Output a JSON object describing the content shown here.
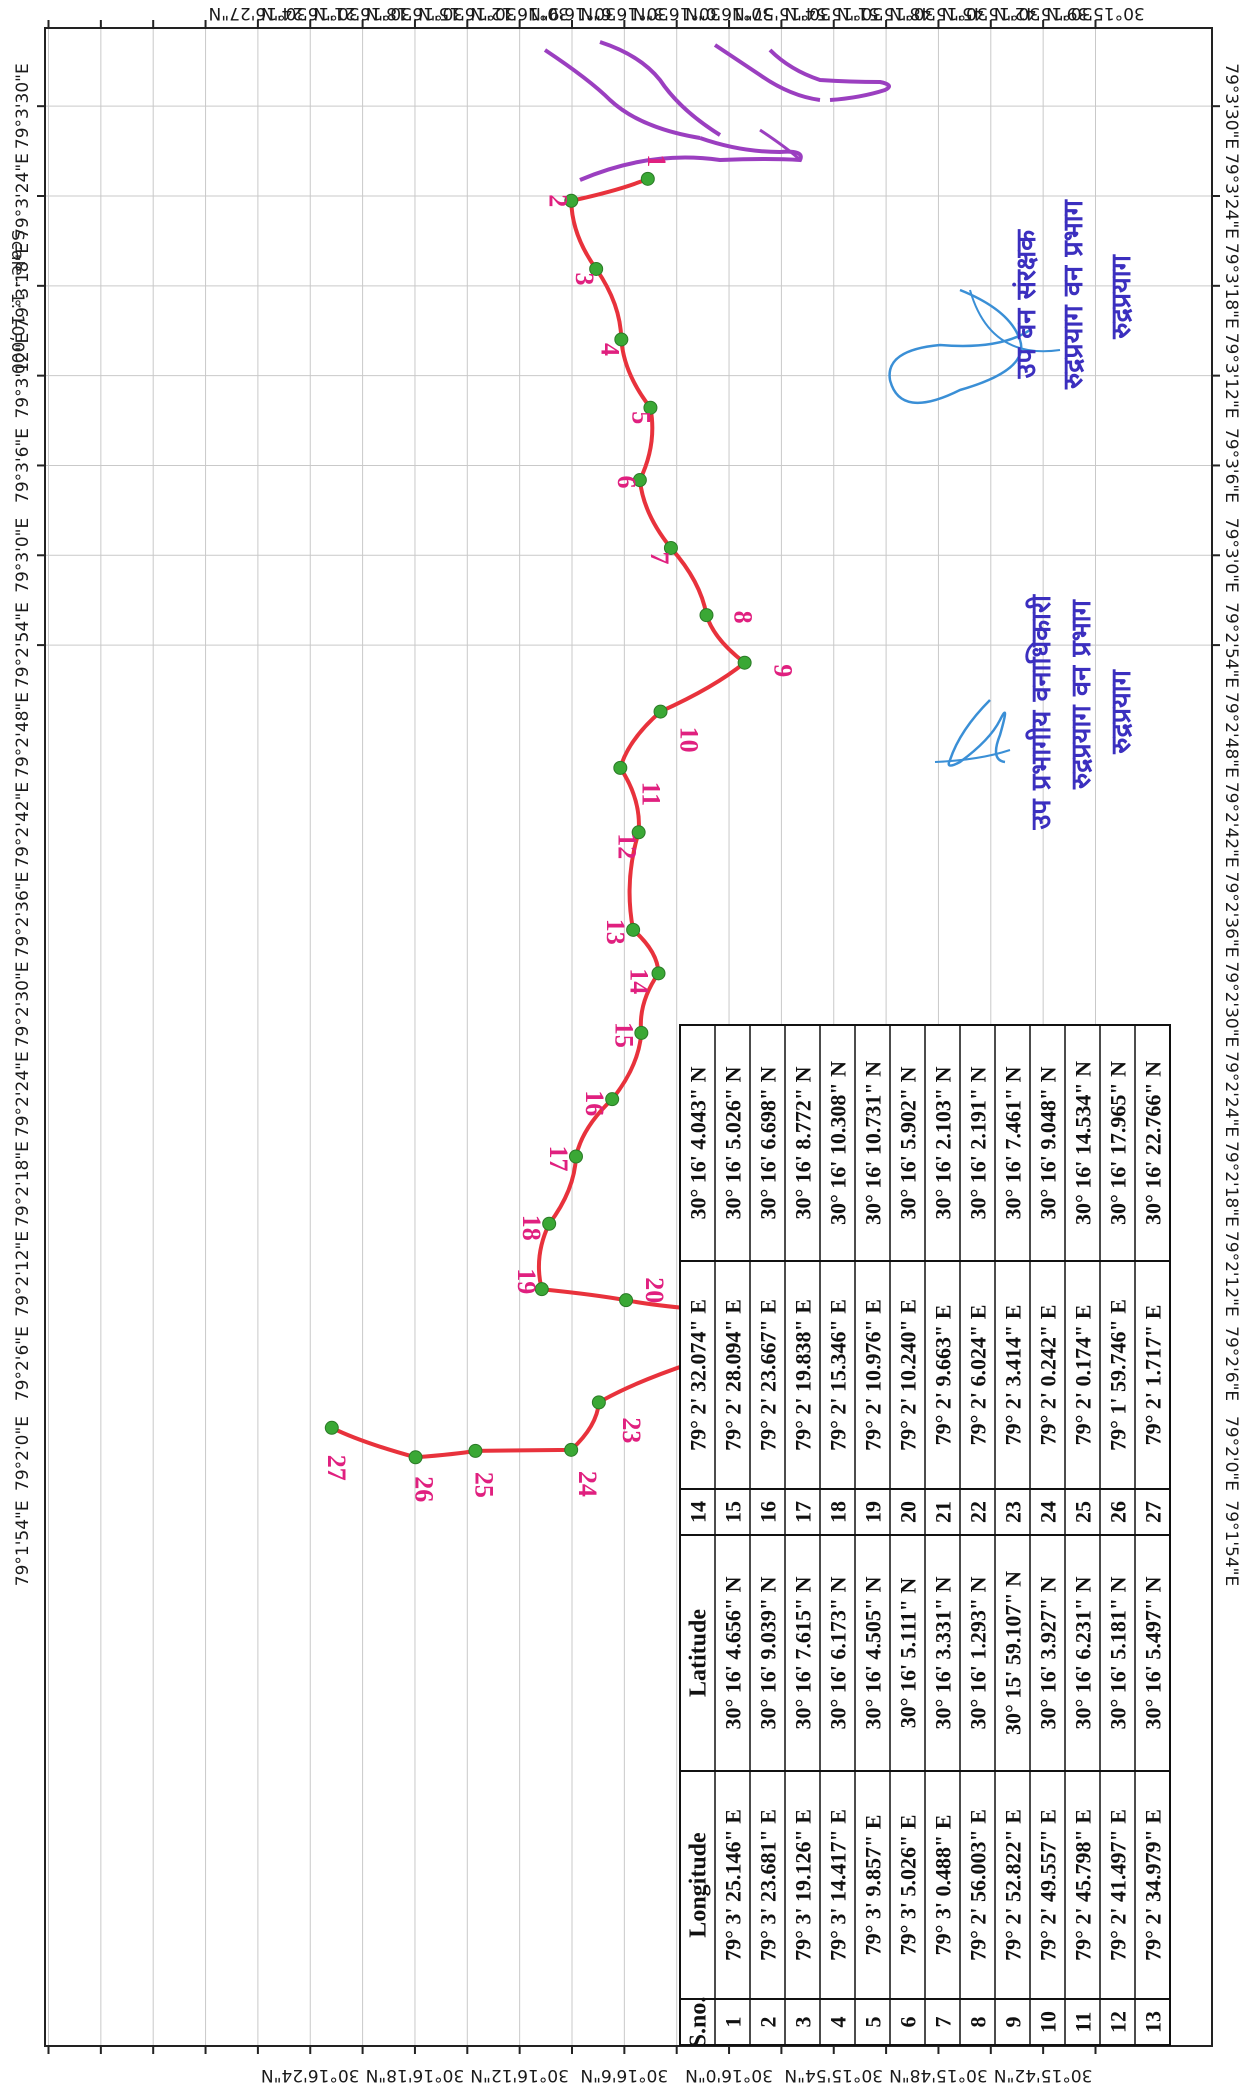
{
  "map": {
    "scale_text": "Scale - 1: 10,000",
    "top_lat_labels": [
      "30°16'27\"N",
      "30°16'24\"N",
      "30°16'21\"N",
      "30°16'18\"N",
      "30°16'15\"N",
      "30°16'12\"N",
      "30°16'9\"N",
      "30°16'6\"N",
      "30°16'3\"N",
      "30°16'0\"N",
      "30°15'57\"N",
      "30°15'54\"N",
      "30°15'51\"N",
      "30°15'48\"N",
      "30°15'45\"N",
      "30°15'42\"N",
      "30°15'39\"N"
    ],
    "bottom_lat_labels": [
      "30°16'24\"N",
      "30°16'18\"N",
      "30°16'12\"N",
      "30°16'6\"N",
      "30°16'0\"N",
      "30°15'54\"N",
      "30°15'48\"N",
      "30°15'42\"N"
    ],
    "lon_labels": [
      "79°3'30\"E",
      "79°3'24\"E",
      "79°3'18\"E",
      "79°3'12\"E",
      "79°3'6\"E",
      "79°3'0\"E",
      "79°2'54\"E",
      "79°2'48\"E",
      "79°2'42\"E",
      "79°2'36\"E",
      "79°2'30\"E",
      "79°2'24\"E",
      "79°2'18\"E",
      "79°2'12\"E",
      "79°2'6\"E",
      "79°2'0\"E",
      "79°1'54\"E"
    ],
    "colors": {
      "route": "#e8323c",
      "point": "#3aa835",
      "label": "#e0207f",
      "river": "#9b3fc0",
      "grid": "#c9c9c9",
      "stamp": "#3b2fbf",
      "signature": "#3a8fd6"
    },
    "points": [
      {
        "n": "1",
        "lon": "79° 3' 25.146\" E",
        "lat": "30° 16' 4.656\" N"
      },
      {
        "n": "2",
        "lon": "79° 3' 23.681\" E",
        "lat": "30° 16' 9.039\" N"
      },
      {
        "n": "3",
        "lon": "79° 3' 19.126\" E",
        "lat": "30° 16' 7.615\" N"
      },
      {
        "n": "4",
        "lon": "79° 3' 14.417\" E",
        "lat": "30° 16' 6.173\" N"
      },
      {
        "n": "5",
        "lon": "79° 3' 9.857\" E",
        "lat": "30° 16' 4.505\" N"
      },
      {
        "n": "6",
        "lon": "79° 3' 5.026\" E",
        "lat": "30° 16' 5.111\" N"
      },
      {
        "n": "7",
        "lon": "79° 3' 0.488\" E",
        "lat": "30° 16' 3.331\" N"
      },
      {
        "n": "8",
        "lon": "79° 2' 56.003\" E",
        "lat": "30° 16' 1.293\" N"
      },
      {
        "n": "9",
        "lon": "79° 2' 52.822\" E",
        "lat": "30° 15' 59.107\" N"
      },
      {
        "n": "10",
        "lon": "79° 2' 49.557\" E",
        "lat": "30° 16' 3.927\" N"
      },
      {
        "n": "11",
        "lon": "79° 2' 45.798\" E",
        "lat": "30° 16' 6.231\" N"
      },
      {
        "n": "12",
        "lon": "79° 2' 41.497\" E",
        "lat": "30° 16' 5.181\" N"
      },
      {
        "n": "13",
        "lon": "79° 2' 34.979\" E",
        "lat": "30° 16' 5.497\" N"
      },
      {
        "n": "14",
        "lon": "79° 2' 32.074\" E",
        "lat": "30° 16' 4.043\" N"
      },
      {
        "n": "15",
        "lon": "79° 2' 28.094\" E",
        "lat": "30° 16' 5.026\" N"
      },
      {
        "n": "16",
        "lon": "79° 2' 23.667\" E",
        "lat": "30° 16' 6.698\" N"
      },
      {
        "n": "17",
        "lon": "79° 2' 19.838\" E",
        "lat": "30° 16' 8.772\" N"
      },
      {
        "n": "18",
        "lon": "79° 2' 15.346\" E",
        "lat": "30° 16' 10.308\" N"
      },
      {
        "n": "19",
        "lon": "79° 2' 10.976\" E",
        "lat": "30° 16' 10.731\" N"
      },
      {
        "n": "20",
        "lon": "79° 2' 10.240\" E",
        "lat": "30° 16' 5.902\" N"
      },
      {
        "n": "21",
        "lon": "79° 2' 9.663\" E",
        "lat": "30° 16' 2.103\" N"
      },
      {
        "n": "22",
        "lon": "79° 2' 6.024\" E",
        "lat": "30° 16' 2.191\" N"
      },
      {
        "n": "23",
        "lon": "79° 2' 3.414\" E",
        "lat": "30° 16' 7.461\" N"
      },
      {
        "n": "24",
        "lon": "79° 2' 0.242\" E",
        "lat": "30° 16' 9.048\" N"
      },
      {
        "n": "25",
        "lon": "79° 2' 0.174\" E",
        "lat": "30° 16' 14.534\" N"
      },
      {
        "n": "26",
        "lon": "79° 1' 59.746\" E",
        "lat": "30° 16' 17.965\" N"
      },
      {
        "n": "27",
        "lon": "79° 2' 1.717\" E",
        "lat": "30° 16' 22.766\" N"
      }
    ],
    "table": {
      "col_sno": "S.no.",
      "col_lon": "Longitude",
      "col_lat": "Latitude"
    },
    "stamps": {
      "stamp1_lines": [
        "उप वन संरक्षक",
        "रुद्रप्रयाग वन प्रभाग",
        "रुद्रप्रयाग"
      ],
      "stamp2_lines": [
        "उप प्रभागीय वनाधिकारी",
        "रुद्रप्रयाग वन प्रभाग",
        "रुद्रप्रयाग"
      ]
    }
  }
}
